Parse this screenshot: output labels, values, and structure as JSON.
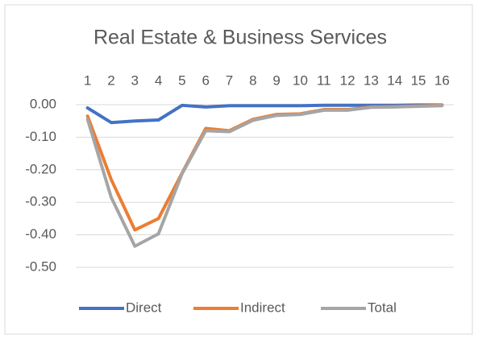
{
  "chart_data": {
    "type": "line",
    "title": "Real Estate & Business Services",
    "categories": [
      "1",
      "2",
      "3",
      "4",
      "5",
      "6",
      "7",
      "8",
      "9",
      "10",
      "11",
      "12",
      "13",
      "14",
      "15",
      "16"
    ],
    "series": [
      {
        "name": "Direct",
        "color": "#4472c4",
        "values": [
          -0.01,
          -0.055,
          -0.05,
          -0.047,
          -0.002,
          -0.007,
          -0.003,
          -0.003,
          -0.003,
          -0.003,
          -0.002,
          -0.002,
          -0.002,
          -0.002,
          -0.001,
          -0.001
        ]
      },
      {
        "name": "Indirect",
        "color": "#ed7d31",
        "values": [
          -0.035,
          -0.23,
          -0.385,
          -0.35,
          -0.21,
          -0.073,
          -0.08,
          -0.045,
          -0.03,
          -0.028,
          -0.015,
          -0.015,
          -0.007,
          -0.006,
          -0.004,
          -0.002
        ]
      },
      {
        "name": "Total",
        "color": "#a5a5a5",
        "values": [
          -0.045,
          -0.285,
          -0.435,
          -0.397,
          -0.212,
          -0.08,
          -0.083,
          -0.048,
          -0.033,
          -0.03,
          -0.017,
          -0.017,
          -0.008,
          -0.007,
          -0.005,
          -0.003
        ]
      }
    ],
    "ylim": [
      -0.5,
      0
    ],
    "yticks": [
      {
        "value": 0,
        "label": "0.00"
      },
      {
        "value": -0.1,
        "label": "-0.10"
      },
      {
        "value": -0.2,
        "label": "-0.20"
      },
      {
        "value": -0.3,
        "label": "-0.30"
      },
      {
        "value": -0.4,
        "label": "-0.40"
      },
      {
        "value": -0.5,
        "label": "-0.50"
      }
    ],
    "grid": true,
    "legend": "bottom"
  }
}
